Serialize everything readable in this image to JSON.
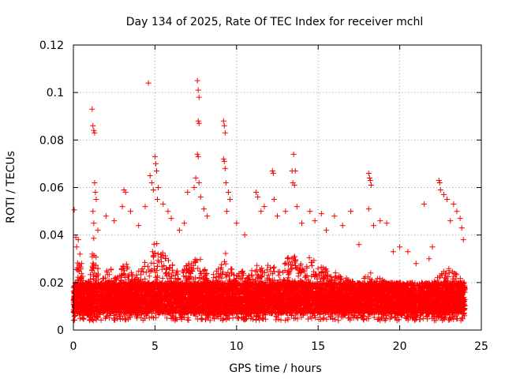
{
  "chart_data": {
    "type": "scatter",
    "title": "Day 134 of 2025, Rate Of TEC Index for receiver mchl",
    "xlabel": "GPS time / hours",
    "ylabel": "ROTI / TECUs",
    "xlim": [
      0,
      25
    ],
    "ylim": [
      0,
      0.12
    ],
    "xticks": [
      0,
      5,
      10,
      15,
      20,
      25
    ],
    "xtick_labels": [
      "0",
      "5",
      "10",
      "15",
      "20",
      "25"
    ],
    "yticks": [
      0,
      0.02,
      0.04,
      0.06,
      0.08,
      0.1,
      0.12
    ],
    "ytick_labels": [
      "0",
      "0.02",
      "0.04",
      "0.06",
      "0.08",
      "0.1",
      "0.12"
    ],
    "grid": true,
    "marker": "+",
    "color": "#ff0000",
    "series": [
      {
        "points": [
          [
            0.05,
            0.0506
          ],
          [
            0.15,
            0.039
          ],
          [
            0.2,
            0.035
          ],
          [
            0.3,
            0.038
          ],
          [
            0.4,
            0.032
          ],
          [
            0.5,
            0.028
          ],
          [
            1.15,
            0.093
          ],
          [
            1.2,
            0.086
          ],
          [
            1.25,
            0.084
          ],
          [
            1.3,
            0.083
          ],
          [
            1.3,
            0.062
          ],
          [
            1.35,
            0.058
          ],
          [
            1.4,
            0.055
          ],
          [
            1.2,
            0.05
          ],
          [
            1.25,
            0.045
          ],
          [
            1.5,
            0.042
          ],
          [
            2.0,
            0.048
          ],
          [
            2.5,
            0.046
          ],
          [
            3.1,
            0.059
          ],
          [
            3.2,
            0.058
          ],
          [
            3.0,
            0.052
          ],
          [
            3.5,
            0.05
          ],
          [
            4.0,
            0.044
          ],
          [
            4.6,
            0.104
          ],
          [
            4.4,
            0.052
          ],
          [
            4.7,
            0.065
          ],
          [
            4.8,
            0.062
          ],
          [
            4.9,
            0.059
          ],
          [
            5.0,
            0.073
          ],
          [
            5.05,
            0.07
          ],
          [
            5.1,
            0.067
          ],
          [
            5.15,
            0.055
          ],
          [
            5.2,
            0.06
          ],
          [
            5.5,
            0.053
          ],
          [
            5.8,
            0.05
          ],
          [
            6.0,
            0.047
          ],
          [
            6.5,
            0.042
          ],
          [
            6.8,
            0.045
          ],
          [
            7.0,
            0.058
          ],
          [
            7.4,
            0.06
          ],
          [
            7.5,
            0.064
          ],
          [
            7.6,
            0.105
          ],
          [
            7.65,
            0.101
          ],
          [
            7.7,
            0.098
          ],
          [
            7.65,
            0.088
          ],
          [
            7.7,
            0.087
          ],
          [
            7.6,
            0.074
          ],
          [
            7.65,
            0.073
          ],
          [
            7.7,
            0.062
          ],
          [
            7.8,
            0.056
          ],
          [
            8.0,
            0.051
          ],
          [
            8.2,
            0.048
          ],
          [
            9.2,
            0.088
          ],
          [
            9.25,
            0.086
          ],
          [
            9.3,
            0.083
          ],
          [
            9.2,
            0.072
          ],
          [
            9.25,
            0.071
          ],
          [
            9.3,
            0.068
          ],
          [
            9.35,
            0.062
          ],
          [
            9.5,
            0.058
          ],
          [
            9.6,
            0.055
          ],
          [
            9.4,
            0.05
          ],
          [
            10.0,
            0.045
          ],
          [
            10.5,
            0.04
          ],
          [
            11.2,
            0.058
          ],
          [
            11.3,
            0.056
          ],
          [
            11.5,
            0.05
          ],
          [
            11.7,
            0.052
          ],
          [
            12.2,
            0.067
          ],
          [
            12.25,
            0.066
          ],
          [
            12.3,
            0.055
          ],
          [
            12.5,
            0.048
          ],
          [
            13.0,
            0.05
          ],
          [
            13.5,
            0.074
          ],
          [
            13.4,
            0.067
          ],
          [
            13.6,
            0.067
          ],
          [
            13.45,
            0.062
          ],
          [
            13.55,
            0.061
          ],
          [
            13.7,
            0.052
          ],
          [
            14.0,
            0.045
          ],
          [
            14.5,
            0.05
          ],
          [
            14.8,
            0.046
          ],
          [
            15.2,
            0.049
          ],
          [
            15.5,
            0.042
          ],
          [
            16.0,
            0.048
          ],
          [
            16.5,
            0.044
          ],
          [
            17.0,
            0.05
          ],
          [
            17.5,
            0.036
          ],
          [
            18.1,
            0.066
          ],
          [
            18.15,
            0.064
          ],
          [
            18.2,
            0.063
          ],
          [
            18.25,
            0.061
          ],
          [
            18.1,
            0.051
          ],
          [
            18.4,
            0.044
          ],
          [
            18.8,
            0.046
          ],
          [
            19.2,
            0.045
          ],
          [
            19.6,
            0.033
          ],
          [
            20.0,
            0.035
          ],
          [
            20.5,
            0.033
          ],
          [
            21.0,
            0.028
          ],
          [
            21.5,
            0.053
          ],
          [
            21.8,
            0.03
          ],
          [
            22.0,
            0.035
          ],
          [
            22.4,
            0.063
          ],
          [
            22.45,
            0.062
          ],
          [
            22.5,
            0.059
          ],
          [
            22.7,
            0.057
          ],
          [
            22.9,
            0.055
          ],
          [
            23.1,
            0.046
          ],
          [
            23.3,
            0.053
          ],
          [
            23.5,
            0.05
          ],
          [
            23.7,
            0.047
          ],
          [
            23.8,
            0.043
          ],
          [
            23.9,
            0.038
          ]
        ],
        "dense_band": [
          [
            0.0,
            0.018
          ],
          [
            0.25,
            0.03
          ],
          [
            0.5,
            0.026
          ],
          [
            0.75,
            0.02
          ],
          [
            1.0,
            0.022
          ],
          [
            1.25,
            0.04
          ],
          [
            1.5,
            0.026
          ],
          [
            1.75,
            0.022
          ],
          [
            2.0,
            0.025
          ],
          [
            2.25,
            0.026
          ],
          [
            2.5,
            0.024
          ],
          [
            2.75,
            0.023
          ],
          [
            3.0,
            0.027
          ],
          [
            3.25,
            0.028
          ],
          [
            3.5,
            0.025
          ],
          [
            3.75,
            0.024
          ],
          [
            4.0,
            0.026
          ],
          [
            4.25,
            0.028
          ],
          [
            4.5,
            0.03
          ],
          [
            4.75,
            0.034
          ],
          [
            5.0,
            0.04
          ],
          [
            5.25,
            0.035
          ],
          [
            5.5,
            0.033
          ],
          [
            5.75,
            0.031
          ],
          [
            6.0,
            0.028
          ],
          [
            6.25,
            0.026
          ],
          [
            6.5,
            0.025
          ],
          [
            6.75,
            0.026
          ],
          [
            7.0,
            0.028
          ],
          [
            7.25,
            0.029
          ],
          [
            7.5,
            0.03
          ],
          [
            7.75,
            0.031
          ],
          [
            8.0,
            0.026
          ],
          [
            8.25,
            0.024
          ],
          [
            8.5,
            0.023
          ],
          [
            8.75,
            0.025
          ],
          [
            9.0,
            0.028
          ],
          [
            9.25,
            0.034
          ],
          [
            9.5,
            0.029
          ],
          [
            9.75,
            0.025
          ],
          [
            10.0,
            0.024
          ],
          [
            10.25,
            0.026
          ],
          [
            10.5,
            0.025
          ],
          [
            10.75,
            0.024
          ],
          [
            11.0,
            0.026
          ],
          [
            11.25,
            0.028
          ],
          [
            11.5,
            0.027
          ],
          [
            11.75,
            0.026
          ],
          [
            12.0,
            0.028
          ],
          [
            12.25,
            0.029
          ],
          [
            12.5,
            0.027
          ],
          [
            12.75,
            0.028
          ],
          [
            13.0,
            0.03
          ],
          [
            13.25,
            0.031
          ],
          [
            13.5,
            0.033
          ],
          [
            13.75,
            0.03
          ],
          [
            14.0,
            0.028
          ],
          [
            14.25,
            0.029
          ],
          [
            14.5,
            0.031
          ],
          [
            14.75,
            0.03
          ],
          [
            15.0,
            0.028
          ],
          [
            15.25,
            0.027
          ],
          [
            15.5,
            0.026
          ],
          [
            15.75,
            0.025
          ],
          [
            16.0,
            0.025
          ],
          [
            16.25,
            0.024
          ],
          [
            16.5,
            0.023
          ],
          [
            16.75,
            0.022
          ],
          [
            17.0,
            0.021
          ],
          [
            17.25,
            0.02
          ],
          [
            17.5,
            0.02
          ],
          [
            17.75,
            0.021
          ],
          [
            18.0,
            0.024
          ],
          [
            18.25,
            0.026
          ],
          [
            18.5,
            0.024
          ],
          [
            18.75,
            0.022
          ],
          [
            19.0,
            0.021
          ],
          [
            19.25,
            0.02
          ],
          [
            19.5,
            0.019
          ],
          [
            19.75,
            0.02
          ],
          [
            20.0,
            0.019
          ],
          [
            20.25,
            0.018
          ],
          [
            20.5,
            0.017
          ],
          [
            20.75,
            0.016
          ],
          [
            21.0,
            0.016
          ],
          [
            21.25,
            0.017
          ],
          [
            21.5,
            0.018
          ],
          [
            21.75,
            0.019
          ],
          [
            22.0,
            0.02
          ],
          [
            22.25,
            0.022
          ],
          [
            22.5,
            0.024
          ],
          [
            22.75,
            0.025
          ],
          [
            23.0,
            0.026
          ],
          [
            23.25,
            0.025
          ],
          [
            23.5,
            0.024
          ],
          [
            23.75,
            0.022
          ],
          [
            24.0,
            0.02
          ]
        ]
      }
    ]
  }
}
